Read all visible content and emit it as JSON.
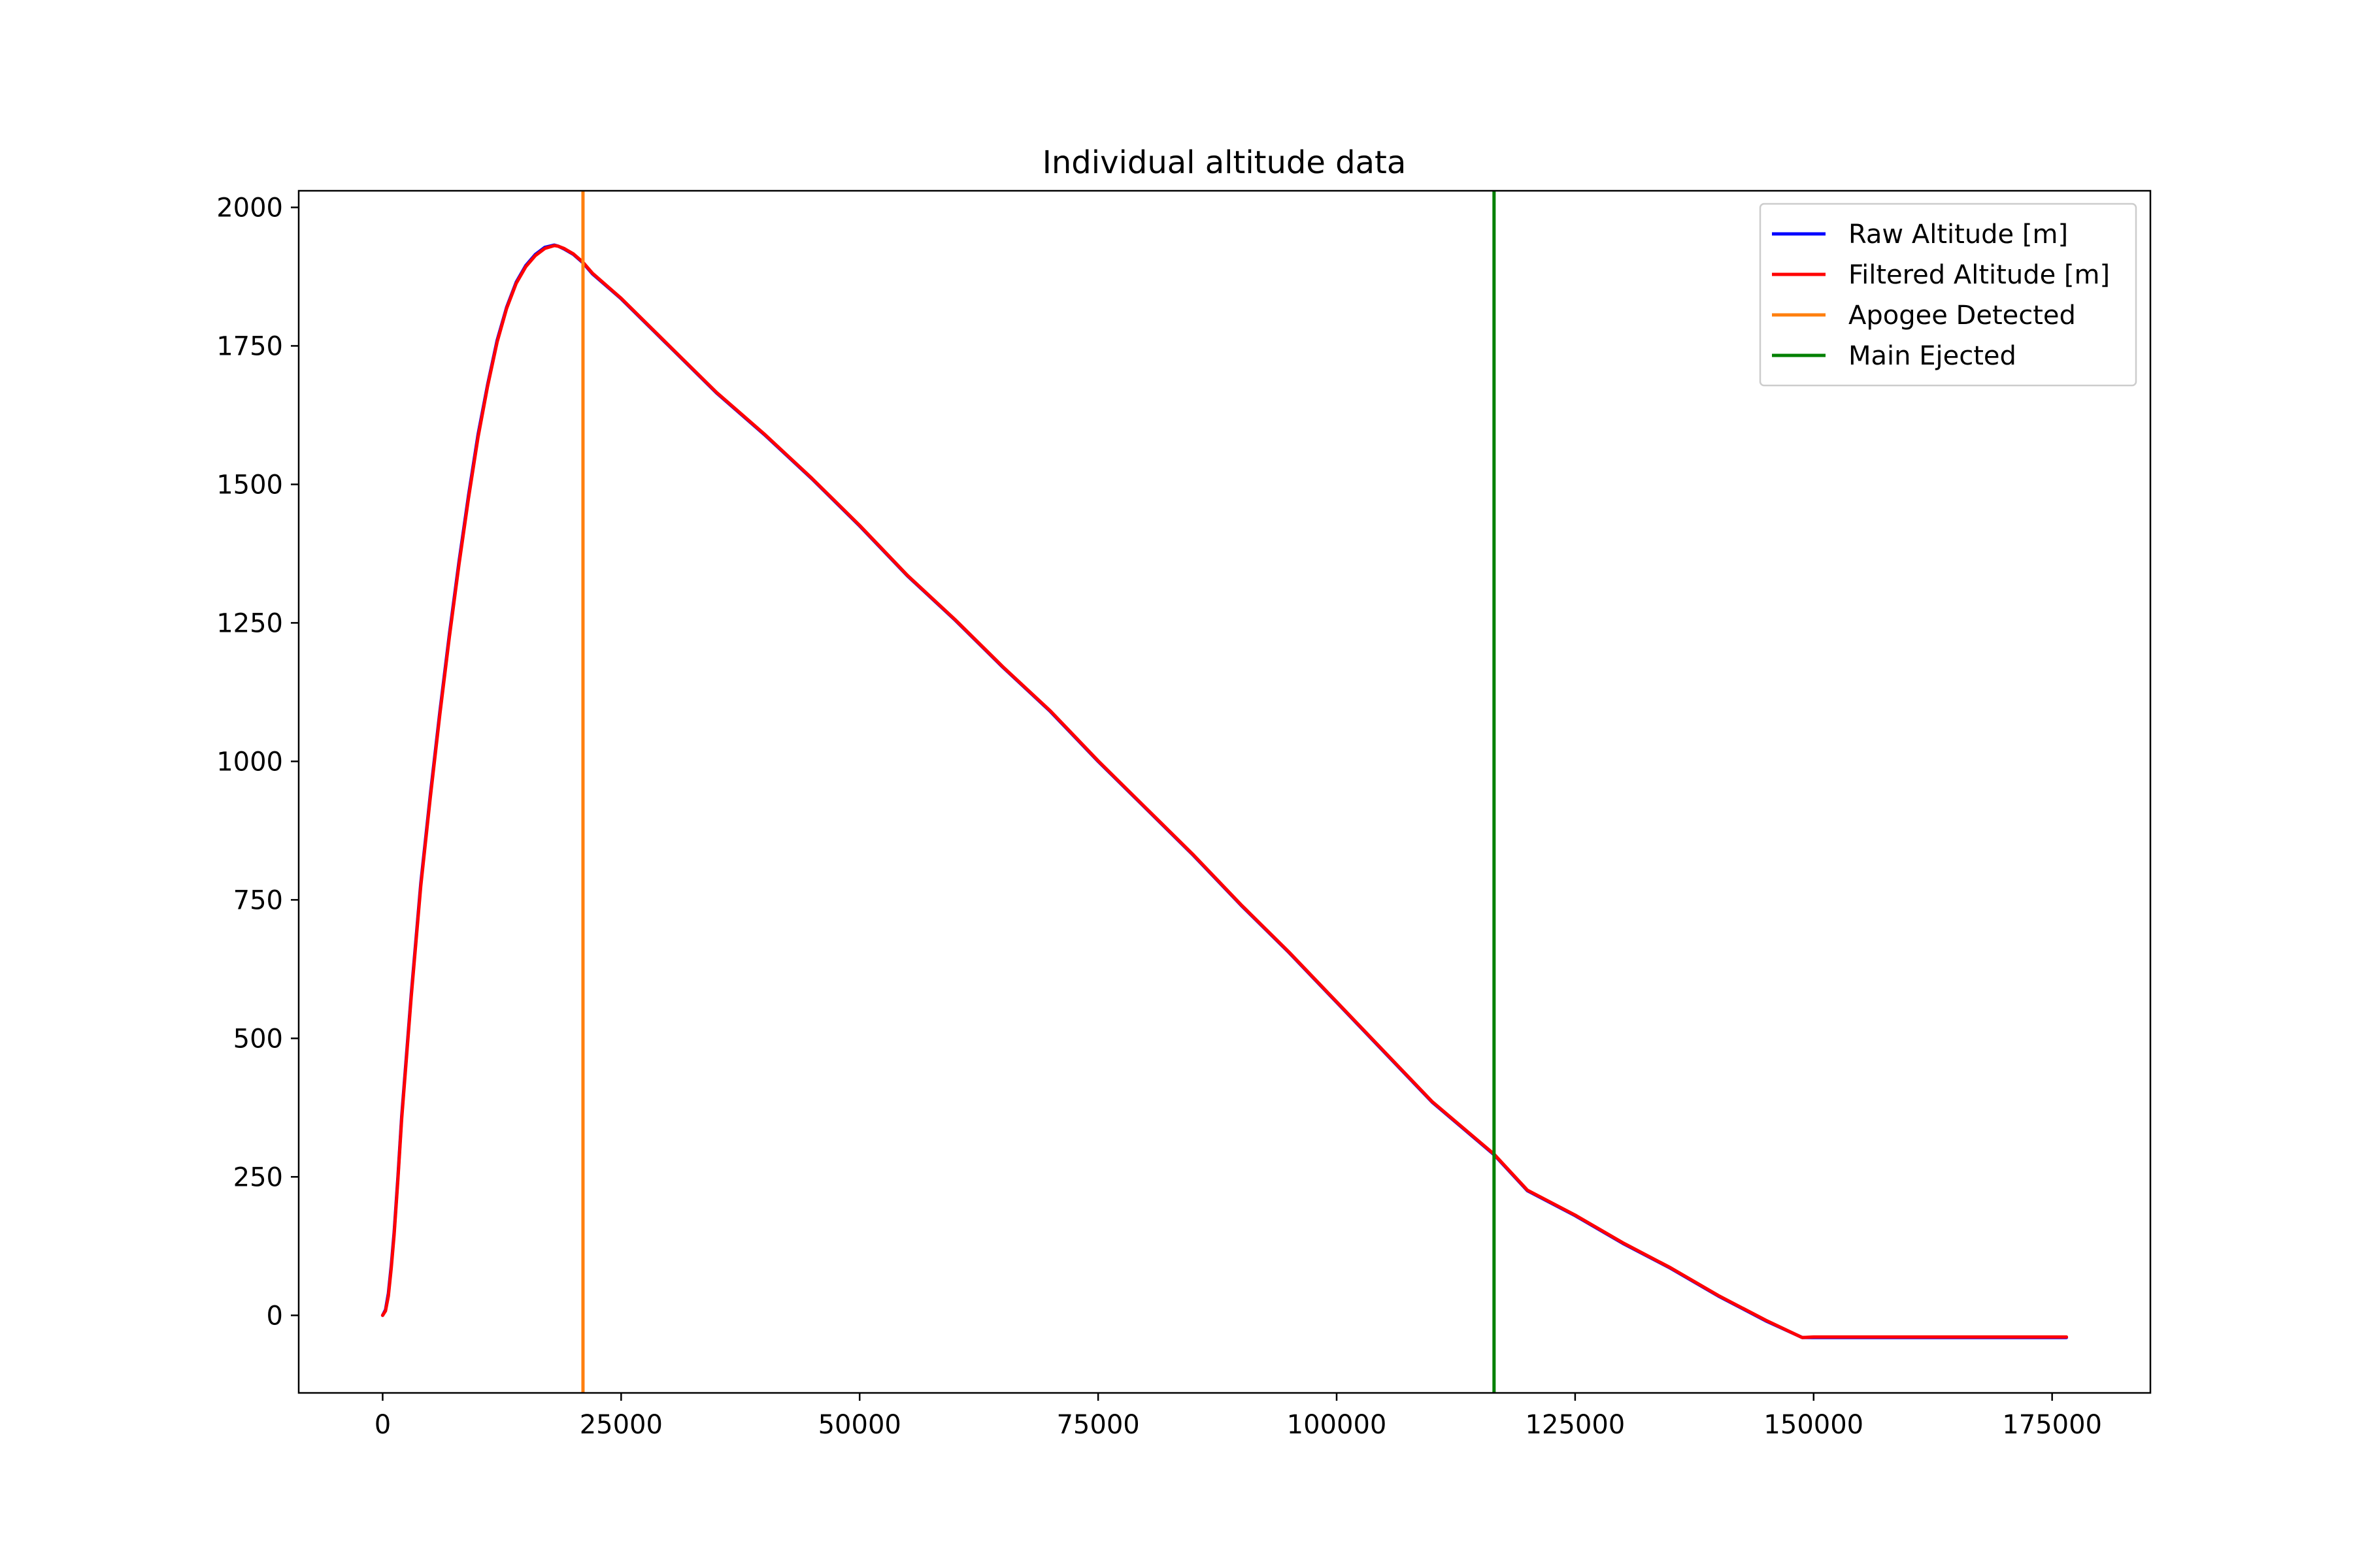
{
  "chart_data": {
    "type": "line",
    "title": "Individual altitude data",
    "xlabel": "",
    "ylabel": "",
    "xlim": [
      -8800,
      185300
    ],
    "ylim": [
      -140,
      2030
    ],
    "xticks": [
      0,
      25000,
      50000,
      75000,
      100000,
      125000,
      150000,
      175000
    ],
    "xtick_labels": [
      "0",
      "25000",
      "50000",
      "75000",
      "100000",
      "125000",
      "150000",
      "175000"
    ],
    "yticks": [
      0,
      250,
      500,
      750,
      1000,
      1250,
      1500,
      1750,
      2000
    ],
    "ytick_labels": [
      "0",
      "250",
      "500",
      "750",
      "1000",
      "1250",
      "1500",
      "1750",
      "2000"
    ],
    "grid": false,
    "legend_position": "top-right",
    "series": [
      {
        "name": "Raw Altitude [m]",
        "color": "#0000ff",
        "x": [
          0,
          300,
          600,
          900,
          1200,
          1600,
          2000,
          2500,
          3000,
          3500,
          4000,
          5000,
          6000,
          7000,
          8000,
          9000,
          10000,
          11000,
          12000,
          13000,
          14000,
          15000,
          16000,
          17000,
          18000,
          18400,
          19000,
          20000,
          21000,
          22000,
          25000,
          30000,
          35000,
          40000,
          45000,
          50000,
          55000,
          60000,
          65000,
          70000,
          75000,
          80000,
          85000,
          90000,
          95000,
          100000,
          105000,
          110000,
          116500,
          120000,
          125000,
          130000,
          135000,
          140000,
          145000,
          148800,
          150000,
          155000,
          160000,
          165000,
          170000,
          176500
        ],
        "y": [
          0,
          10,
          40,
          90,
          150,
          250,
          360,
          470,
          580,
          680,
          780,
          940,
          1090,
          1230,
          1360,
          1480,
          1590,
          1680,
          1760,
          1820,
          1865,
          1895,
          1915,
          1928,
          1932,
          1930,
          1925,
          1915,
          1900,
          1880,
          1835,
          1750,
          1665,
          1590,
          1510,
          1425,
          1335,
          1255,
          1170,
          1090,
          1000,
          915,
          830,
          740,
          655,
          565,
          475,
          385,
          290,
          225,
          180,
          130,
          85,
          35,
          -10,
          -40,
          -40,
          -40,
          -40,
          -40,
          -40,
          -40
        ]
      },
      {
        "name": "Filtered Altitude [m]",
        "color": "#ff0000",
        "x": [
          0,
          300,
          600,
          900,
          1200,
          1600,
          2000,
          2500,
          3000,
          3500,
          4000,
          5000,
          6000,
          7000,
          8000,
          9000,
          10000,
          11000,
          12000,
          13000,
          14000,
          15000,
          16000,
          17000,
          18000,
          18400,
          19000,
          20000,
          21000,
          22000,
          25000,
          30000,
          35000,
          40000,
          45000,
          50000,
          55000,
          60000,
          65000,
          70000,
          75000,
          80000,
          85000,
          90000,
          95000,
          100000,
          105000,
          110000,
          116500,
          120000,
          125000,
          130000,
          135000,
          140000,
          145000,
          148800,
          150000,
          155000,
          160000,
          165000,
          170000,
          176500
        ],
        "y": [
          0,
          8,
          35,
          85,
          145,
          245,
          355,
          465,
          575,
          675,
          775,
          935,
          1085,
          1225,
          1355,
          1475,
          1585,
          1677,
          1757,
          1818,
          1863,
          1893,
          1913,
          1926,
          1931,
          1930,
          1926,
          1916,
          1901,
          1881,
          1836,
          1751,
          1666,
          1591,
          1511,
          1426,
          1336,
          1256,
          1171,
          1091,
          1001,
          916,
          831,
          741,
          656,
          566,
          476,
          386,
          291,
          226,
          181,
          131,
          86,
          36,
          -9,
          -40,
          -39,
          -39,
          -39,
          -39,
          -39,
          -39
        ]
      },
      {
        "name": "Apogee Detected",
        "color": "#ff7f0e",
        "type": "vline",
        "x": 21000
      },
      {
        "name": "Main Ejected",
        "color": "#008000",
        "type": "vline",
        "x": 116500
      }
    ]
  }
}
